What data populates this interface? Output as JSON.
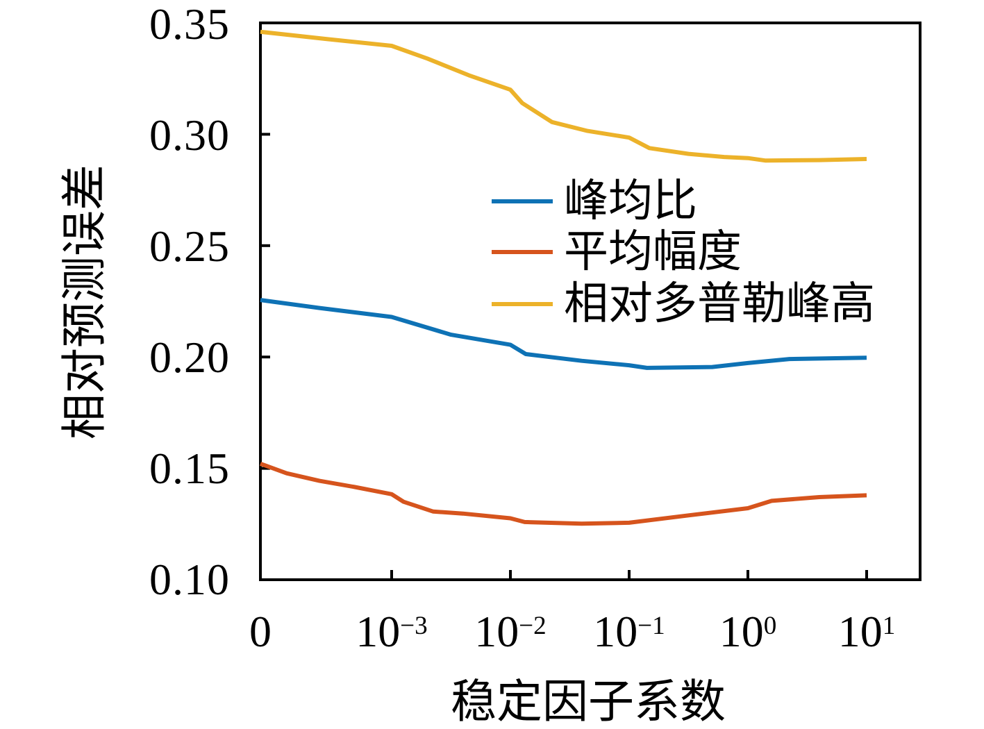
{
  "figure": {
    "background": "#ffffff",
    "frame_color": "#000000"
  },
  "axes": {
    "x": {
      "title": "稳定因子系数",
      "ticks": [
        {
          "base": "0",
          "exp": ""
        },
        {
          "base": "10",
          "exp": "−3"
        },
        {
          "base": "10",
          "exp": "−2"
        },
        {
          "base": "10",
          "exp": "−1"
        },
        {
          "base": "10",
          "exp": "0"
        },
        {
          "base": "10",
          "exp": "1"
        }
      ]
    },
    "y": {
      "title": "相对预测误差",
      "ticks": [
        "0.35",
        "0.30",
        "0.25",
        "0.20",
        "0.15",
        "0.10"
      ]
    }
  },
  "legend": {
    "items": [
      {
        "label": "峰均比",
        "color": "#0e72b5"
      },
      {
        "label": "平均幅度",
        "color": "#d6541d"
      },
      {
        "label": "相对多普勒峰高",
        "color": "#ecb22a"
      }
    ]
  },
  "chart_data": {
    "type": "line",
    "title": "",
    "xlabel": "稳定因子系数",
    "ylabel": "相对预测误差",
    "x_axis": "first tick is 0, then logarithmic 10^-3 .. 10^1",
    "x_tick_values": [
      0,
      0.001,
      0.01,
      0.1,
      1,
      10
    ],
    "x_coordinate_note": "points use xi = tick-index coordinates: 0→x=0, 1→10^-3, 2→10^-2, 3→10^-1, 4→10^0, 5→10^1 (fractional = log-interpolated)",
    "ylim": [
      0.1,
      0.35
    ],
    "grid": false,
    "legend_position": "upper right inside, no box",
    "series": [
      {
        "name": "峰均比",
        "color": "#0e72b5",
        "points": [
          [
            0,
            0.2256
          ],
          [
            0.45,
            0.222
          ],
          [
            1,
            0.218
          ],
          [
            1.5,
            0.21
          ],
          [
            2,
            0.2055
          ],
          [
            2.13,
            0.2013
          ],
          [
            2.6,
            0.1983
          ],
          [
            3,
            0.1963
          ],
          [
            3.15,
            0.1951
          ],
          [
            3.7,
            0.1955
          ],
          [
            4,
            0.1973
          ],
          [
            4.35,
            0.1991
          ],
          [
            5,
            0.1997
          ]
        ]
      },
      {
        "name": "平均幅度",
        "color": "#d6541d",
        "points": [
          [
            0,
            0.1521
          ],
          [
            0.2,
            0.1478
          ],
          [
            0.45,
            0.1444
          ],
          [
            0.72,
            0.1416
          ],
          [
            1,
            0.1384
          ],
          [
            1.1,
            0.135
          ],
          [
            1.35,
            0.1306
          ],
          [
            1.6,
            0.1297
          ],
          [
            2,
            0.1276
          ],
          [
            2.12,
            0.1259
          ],
          [
            2.6,
            0.1252
          ],
          [
            3,
            0.1256
          ],
          [
            3.5,
            0.1289
          ],
          [
            4,
            0.1321
          ],
          [
            4.2,
            0.1354
          ],
          [
            4.6,
            0.1371
          ],
          [
            5,
            0.1379
          ]
        ]
      },
      {
        "name": "相对多普勒峰高",
        "color": "#ecb22a",
        "points": [
          [
            0,
            0.346
          ],
          [
            0.5,
            0.3428
          ],
          [
            1,
            0.3397
          ],
          [
            1.3,
            0.334
          ],
          [
            1.65,
            0.3265
          ],
          [
            2,
            0.32
          ],
          [
            2.1,
            0.314
          ],
          [
            2.35,
            0.3055
          ],
          [
            2.65,
            0.3015
          ],
          [
            3,
            0.2985
          ],
          [
            3.17,
            0.2938
          ],
          [
            3.5,
            0.2912
          ],
          [
            3.8,
            0.2898
          ],
          [
            4,
            0.2893
          ],
          [
            4.15,
            0.2882
          ],
          [
            4.6,
            0.2884
          ],
          [
            5,
            0.2889
          ]
        ]
      }
    ]
  }
}
